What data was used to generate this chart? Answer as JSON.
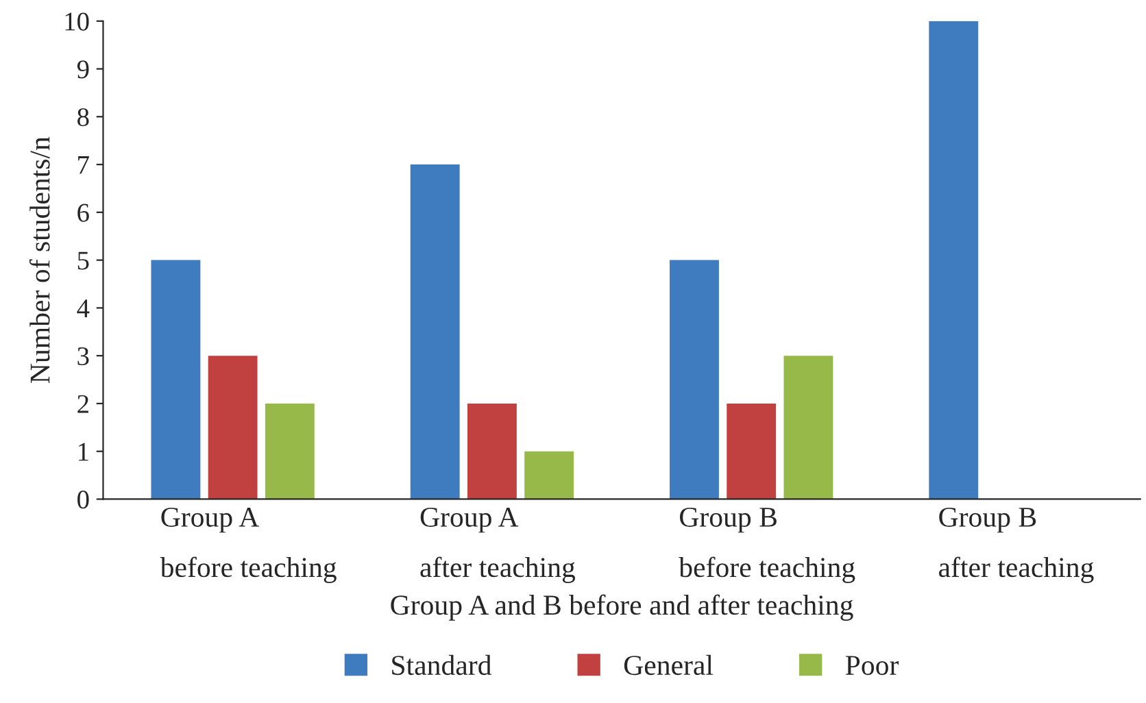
{
  "chart_data": {
    "type": "bar",
    "categories": [
      "Group A\nbefore teaching",
      "Group A\nafter teaching",
      "Group B\nbefore teaching",
      "Group B\nafter teaching"
    ],
    "xlabel": "Group A and B before and after teaching",
    "ylabel": "Number of students/n",
    "series": [
      {
        "name": "Standard",
        "color": "#3f7bbf",
        "values": [
          5,
          7,
          5,
          10
        ]
      },
      {
        "name": "General",
        "color": "#c0413f",
        "values": [
          3,
          2,
          2,
          0
        ]
      },
      {
        "name": "Poor",
        "color": "#97b94a",
        "values": [
          2,
          1,
          3,
          0
        ]
      }
    ],
    "ylim": [
      0,
      10
    ],
    "yticks": [
      0,
      1,
      2,
      3,
      4,
      5,
      6,
      7,
      8,
      9,
      10
    ],
    "grid": false,
    "legend": "bottom"
  }
}
